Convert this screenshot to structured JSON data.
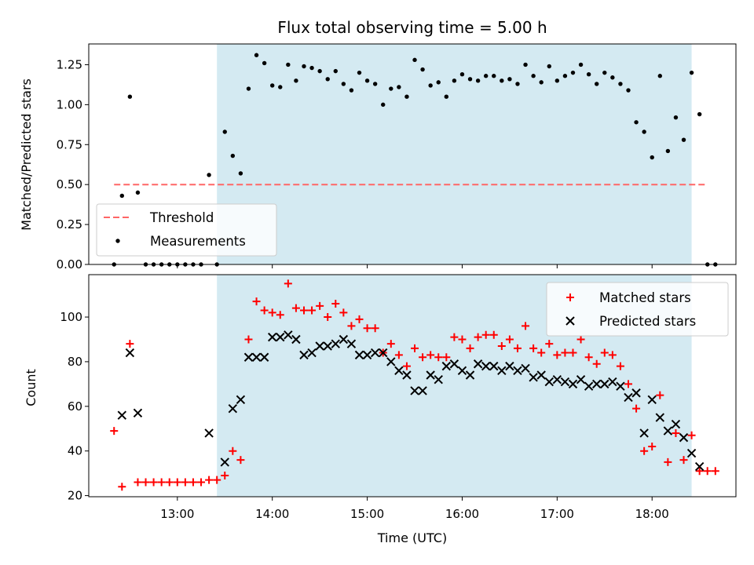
{
  "colors": {
    "shade": "#add8e6",
    "threshold": "#ff6666",
    "measurement": "#000000",
    "matched": "#ff0000",
    "predicted": "#000000"
  },
  "chart_data": [
    {
      "type": "scatter",
      "title": "Flux total observing time = 5.00 h",
      "xlabel": "",
      "ylabel": "Matched/Predicted stars",
      "xlim": [
        "12:04",
        "18:53"
      ],
      "ylim": [
        0,
        1.38
      ],
      "yticks": [
        "0.00",
        "0.25",
        "0.50",
        "0.75",
        "1.00",
        "1.25"
      ],
      "shaded_span": [
        "13:25",
        "18:25"
      ],
      "legend_position": "lower-left",
      "series": [
        {
          "name": "Threshold",
          "style": "dashed-line",
          "x": [
            "12:20",
            "18:35"
          ],
          "y": [
            0.5,
            0.5
          ]
        },
        {
          "name": "Measurements",
          "style": "dot",
          "points": [
            [
              "12:20",
              0
            ],
            [
              "12:25",
              0.43
            ],
            [
              "12:30",
              1.05
            ],
            [
              "12:35",
              0.45
            ],
            [
              "12:40",
              0
            ],
            [
              "12:45",
              0
            ],
            [
              "12:50",
              0
            ],
            [
              "12:55",
              0
            ],
            [
              "13:00",
              0
            ],
            [
              "13:05",
              0
            ],
            [
              "13:10",
              0
            ],
            [
              "13:15",
              0
            ],
            [
              "13:20",
              0.56
            ],
            [
              "13:25",
              0
            ],
            [
              "13:30",
              0.83
            ],
            [
              "13:35",
              0.68
            ],
            [
              "13:40",
              0.57
            ],
            [
              "13:45",
              1.1
            ],
            [
              "13:50",
              1.31
            ],
            [
              "13:55",
              1.26
            ],
            [
              "14:00",
              1.12
            ],
            [
              "14:05",
              1.11
            ],
            [
              "14:10",
              1.25
            ],
            [
              "14:15",
              1.15
            ],
            [
              "14:20",
              1.24
            ],
            [
              "14:25",
              1.23
            ],
            [
              "14:30",
              1.21
            ],
            [
              "14:35",
              1.16
            ],
            [
              "14:40",
              1.21
            ],
            [
              "14:45",
              1.13
            ],
            [
              "14:50",
              1.09
            ],
            [
              "14:55",
              1.2
            ],
            [
              "15:00",
              1.15
            ],
            [
              "15:05",
              1.13
            ],
            [
              "15:10",
              1.0
            ],
            [
              "15:15",
              1.1
            ],
            [
              "15:20",
              1.11
            ],
            [
              "15:25",
              1.05
            ],
            [
              "15:30",
              1.28
            ],
            [
              "15:35",
              1.22
            ],
            [
              "15:40",
              1.12
            ],
            [
              "15:45",
              1.14
            ],
            [
              "15:50",
              1.05
            ],
            [
              "15:55",
              1.15
            ],
            [
              "16:00",
              1.19
            ],
            [
              "16:05",
              1.16
            ],
            [
              "16:10",
              1.15
            ],
            [
              "16:15",
              1.18
            ],
            [
              "16:20",
              1.18
            ],
            [
              "16:25",
              1.15
            ],
            [
              "16:30",
              1.16
            ],
            [
              "16:35",
              1.13
            ],
            [
              "16:40",
              1.25
            ],
            [
              "16:45",
              1.18
            ],
            [
              "16:50",
              1.14
            ],
            [
              "16:55",
              1.24
            ],
            [
              "17:00",
              1.15
            ],
            [
              "17:05",
              1.18
            ],
            [
              "17:10",
              1.2
            ],
            [
              "17:15",
              1.25
            ],
            [
              "17:20",
              1.19
            ],
            [
              "17:25",
              1.13
            ],
            [
              "17:30",
              1.2
            ],
            [
              "17:35",
              1.17
            ],
            [
              "17:40",
              1.13
            ],
            [
              "17:45",
              1.09
            ],
            [
              "17:50",
              0.89
            ],
            [
              "17:55",
              0.83
            ],
            [
              "18:00",
              0.67
            ],
            [
              "18:05",
              1.18
            ],
            [
              "18:10",
              0.71
            ],
            [
              "18:15",
              0.92
            ],
            [
              "18:20",
              0.78
            ],
            [
              "18:25",
              1.2
            ],
            [
              "18:30",
              0.94
            ],
            [
              "18:35",
              0
            ],
            [
              "18:40",
              0
            ]
          ]
        }
      ]
    },
    {
      "type": "scatter",
      "title": "",
      "xlabel": "Time (UTC)",
      "ylabel": "Count",
      "xlim": [
        "12:04",
        "18:53"
      ],
      "ylim": [
        19.5,
        119
      ],
      "xticks": [
        "13:00",
        "14:00",
        "15:00",
        "16:00",
        "17:00",
        "18:00"
      ],
      "yticks": [
        "20",
        "40",
        "60",
        "80",
        "100"
      ],
      "shaded_span": [
        "13:25",
        "18:25"
      ],
      "legend_position": "upper-right",
      "series": [
        {
          "name": "Matched stars",
          "marker": "plus",
          "points": [
            [
              "12:20",
              49
            ],
            [
              "12:25",
              24
            ],
            [
              "12:30",
              88
            ],
            [
              "12:35",
              26
            ],
            [
              "12:40",
              26
            ],
            [
              "12:45",
              26
            ],
            [
              "12:50",
              26
            ],
            [
              "12:55",
              26
            ],
            [
              "13:00",
              26
            ],
            [
              "13:05",
              26
            ],
            [
              "13:10",
              26
            ],
            [
              "13:15",
              26
            ],
            [
              "13:20",
              27
            ],
            [
              "13:25",
              27
            ],
            [
              "13:30",
              29
            ],
            [
              "13:35",
              40
            ],
            [
              "13:40",
              36
            ],
            [
              "13:45",
              90
            ],
            [
              "13:50",
              107
            ],
            [
              "13:55",
              103
            ],
            [
              "14:00",
              102
            ],
            [
              "14:05",
              101
            ],
            [
              "14:10",
              115
            ],
            [
              "14:15",
              104
            ],
            [
              "14:20",
              103
            ],
            [
              "14:25",
              103
            ],
            [
              "14:30",
              105
            ],
            [
              "14:35",
              100
            ],
            [
              "14:40",
              106
            ],
            [
              "14:45",
              102
            ],
            [
              "14:50",
              96
            ],
            [
              "14:55",
              99
            ],
            [
              "15:00",
              95
            ],
            [
              "15:05",
              95
            ],
            [
              "15:10",
              84
            ],
            [
              "15:15",
              88
            ],
            [
              "15:20",
              83
            ],
            [
              "15:25",
              78
            ],
            [
              "15:30",
              86
            ],
            [
              "15:35",
              82
            ],
            [
              "15:40",
              83
            ],
            [
              "15:45",
              82
            ],
            [
              "15:50",
              82
            ],
            [
              "15:55",
              91
            ],
            [
              "16:00",
              90
            ],
            [
              "16:05",
              86
            ],
            [
              "16:10",
              91
            ],
            [
              "16:15",
              92
            ],
            [
              "16:20",
              92
            ],
            [
              "16:25",
              87
            ],
            [
              "16:30",
              90
            ],
            [
              "16:35",
              86
            ],
            [
              "16:40",
              96
            ],
            [
              "16:45",
              86
            ],
            [
              "16:50",
              84
            ],
            [
              "16:55",
              88
            ],
            [
              "17:00",
              83
            ],
            [
              "17:05",
              84
            ],
            [
              "17:10",
              84
            ],
            [
              "17:15",
              90
            ],
            [
              "17:20",
              82
            ],
            [
              "17:25",
              79
            ],
            [
              "17:30",
              84
            ],
            [
              "17:35",
              83
            ],
            [
              "17:40",
              78
            ],
            [
              "17:45",
              70
            ],
            [
              "17:50",
              59
            ],
            [
              "17:55",
              40
            ],
            [
              "18:00",
              42
            ],
            [
              "18:05",
              65
            ],
            [
              "18:10",
              35
            ],
            [
              "18:15",
              48
            ],
            [
              "18:20",
              36
            ],
            [
              "18:25",
              47
            ],
            [
              "18:30",
              31
            ],
            [
              "18:35",
              31
            ],
            [
              "18:40",
              31
            ]
          ]
        },
        {
          "name": "Predicted stars",
          "marker": "x",
          "points": [
            [
              "12:25",
              56
            ],
            [
              "12:30",
              84
            ],
            [
              "12:35",
              57
            ],
            [
              "13:20",
              48
            ],
            [
              "13:30",
              35
            ],
            [
              "13:35",
              59
            ],
            [
              "13:40",
              63
            ],
            [
              "13:45",
              82
            ],
            [
              "13:50",
              82
            ],
            [
              "13:55",
              82
            ],
            [
              "14:00",
              91
            ],
            [
              "14:05",
              91
            ],
            [
              "14:10",
              92
            ],
            [
              "14:15",
              90
            ],
            [
              "14:20",
              83
            ],
            [
              "14:25",
              84
            ],
            [
              "14:30",
              87
            ],
            [
              "14:35",
              87
            ],
            [
              "14:40",
              88
            ],
            [
              "14:45",
              90
            ],
            [
              "14:50",
              88
            ],
            [
              "14:55",
              83
            ],
            [
              "15:00",
              83
            ],
            [
              "15:05",
              84
            ],
            [
              "15:10",
              84
            ],
            [
              "15:15",
              80
            ],
            [
              "15:20",
              76
            ],
            [
              "15:25",
              74
            ],
            [
              "15:30",
              67
            ],
            [
              "15:35",
              67
            ],
            [
              "15:40",
              74
            ],
            [
              "15:45",
              72
            ],
            [
              "15:50",
              78
            ],
            [
              "15:55",
              79
            ],
            [
              "16:00",
              76
            ],
            [
              "16:05",
              74
            ],
            [
              "16:10",
              79
            ],
            [
              "16:15",
              78
            ],
            [
              "16:20",
              78
            ],
            [
              "16:25",
              76
            ],
            [
              "16:30",
              78
            ],
            [
              "16:35",
              76
            ],
            [
              "16:40",
              77
            ],
            [
              "16:45",
              73
            ],
            [
              "16:50",
              74
            ],
            [
              "16:55",
              71
            ],
            [
              "17:00",
              72
            ],
            [
              "17:05",
              71
            ],
            [
              "17:10",
              70
            ],
            [
              "17:15",
              72
            ],
            [
              "17:20",
              69
            ],
            [
              "17:25",
              70
            ],
            [
              "17:30",
              70
            ],
            [
              "17:35",
              71
            ],
            [
              "17:40",
              69
            ],
            [
              "17:45",
              64
            ],
            [
              "17:50",
              66
            ],
            [
              "17:55",
              48
            ],
            [
              "18:00",
              63
            ],
            [
              "18:05",
              55
            ],
            [
              "18:10",
              49
            ],
            [
              "18:15",
              52
            ],
            [
              "18:20",
              46
            ],
            [
              "18:25",
              39
            ],
            [
              "18:30",
              33
            ]
          ]
        }
      ]
    }
  ]
}
